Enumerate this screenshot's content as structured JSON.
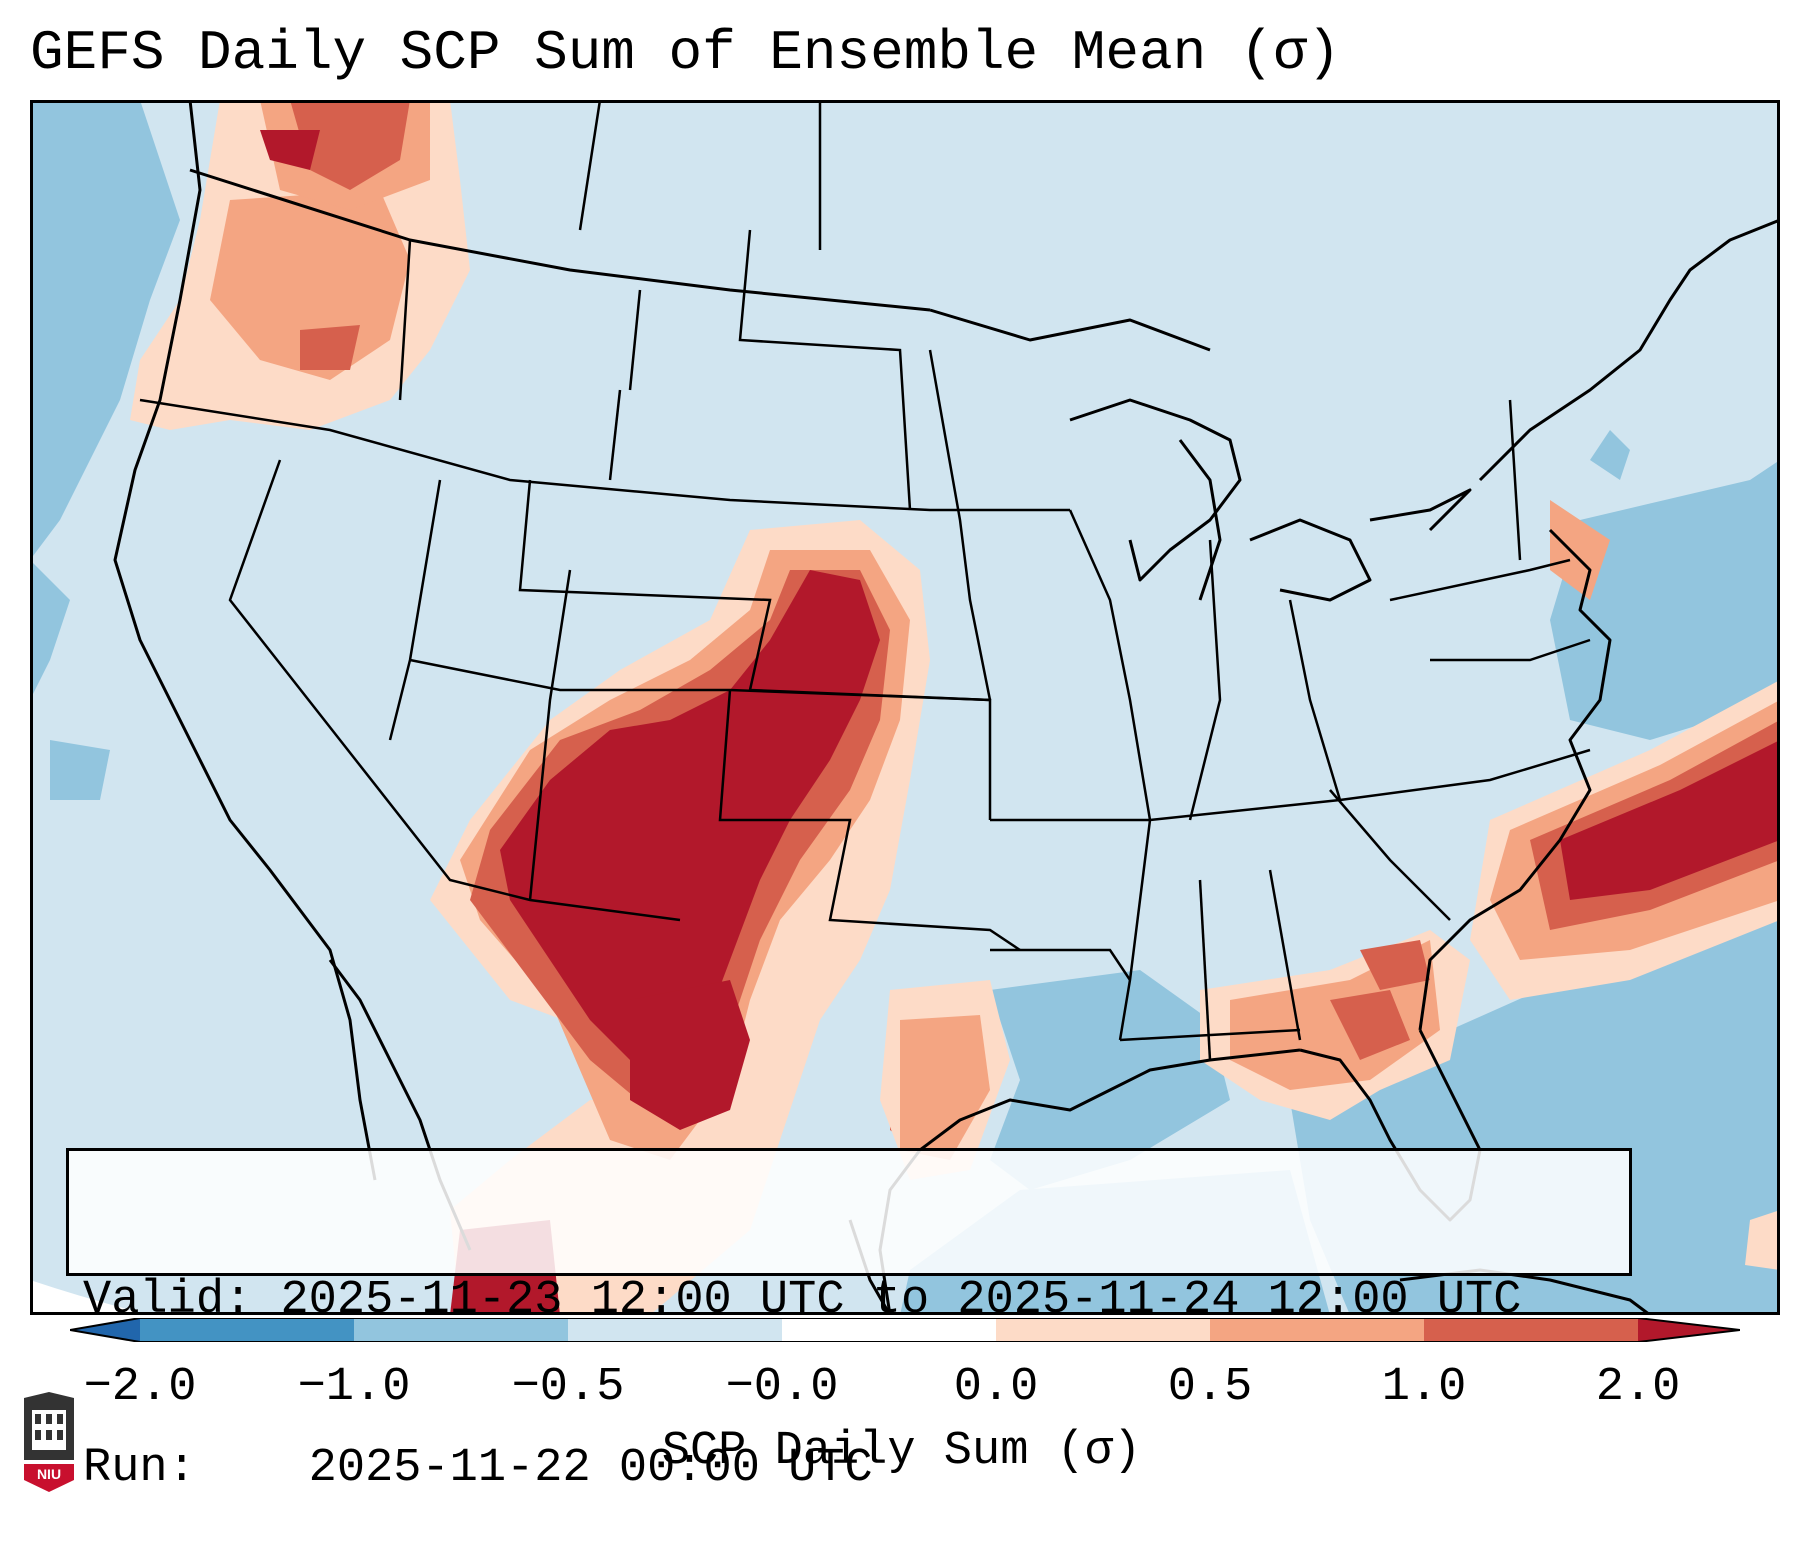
{
  "title": "GEFS Daily SCP Sum of Ensemble Mean (σ)",
  "info": {
    "valid_label": "Valid:",
    "valid_value": "2025-11-23 12:00 UTC to 2025-11-24 12:00 UTC",
    "run_label": "Run:",
    "run_value": "2025-11-22 00:00 UTC"
  },
  "colorbar": {
    "label": "SCP Daily Sum (σ)",
    "ticks": [
      "−2.0",
      "−1.0",
      "−0.5",
      "−0.0",
      "0.0",
      "0.5",
      "1.0",
      "2.0"
    ],
    "colors": {
      "lt_m2": "#2166ac",
      "m2_m1": "#4393c3",
      "m1_m05": "#92c5de",
      "m05_0": "#d1e5f0",
      "zero_05": "#fddbc7",
      "p05_1": "#f4a582",
      "p1_2": "#d6604d",
      "gt_2": "#b2182b"
    }
  },
  "logo": {
    "text": "NIU",
    "icon": "university-seal-icon"
  },
  "colors": {
    "background_field": "#d1e5f0",
    "borders": "#000000",
    "frame": "#000000"
  }
}
